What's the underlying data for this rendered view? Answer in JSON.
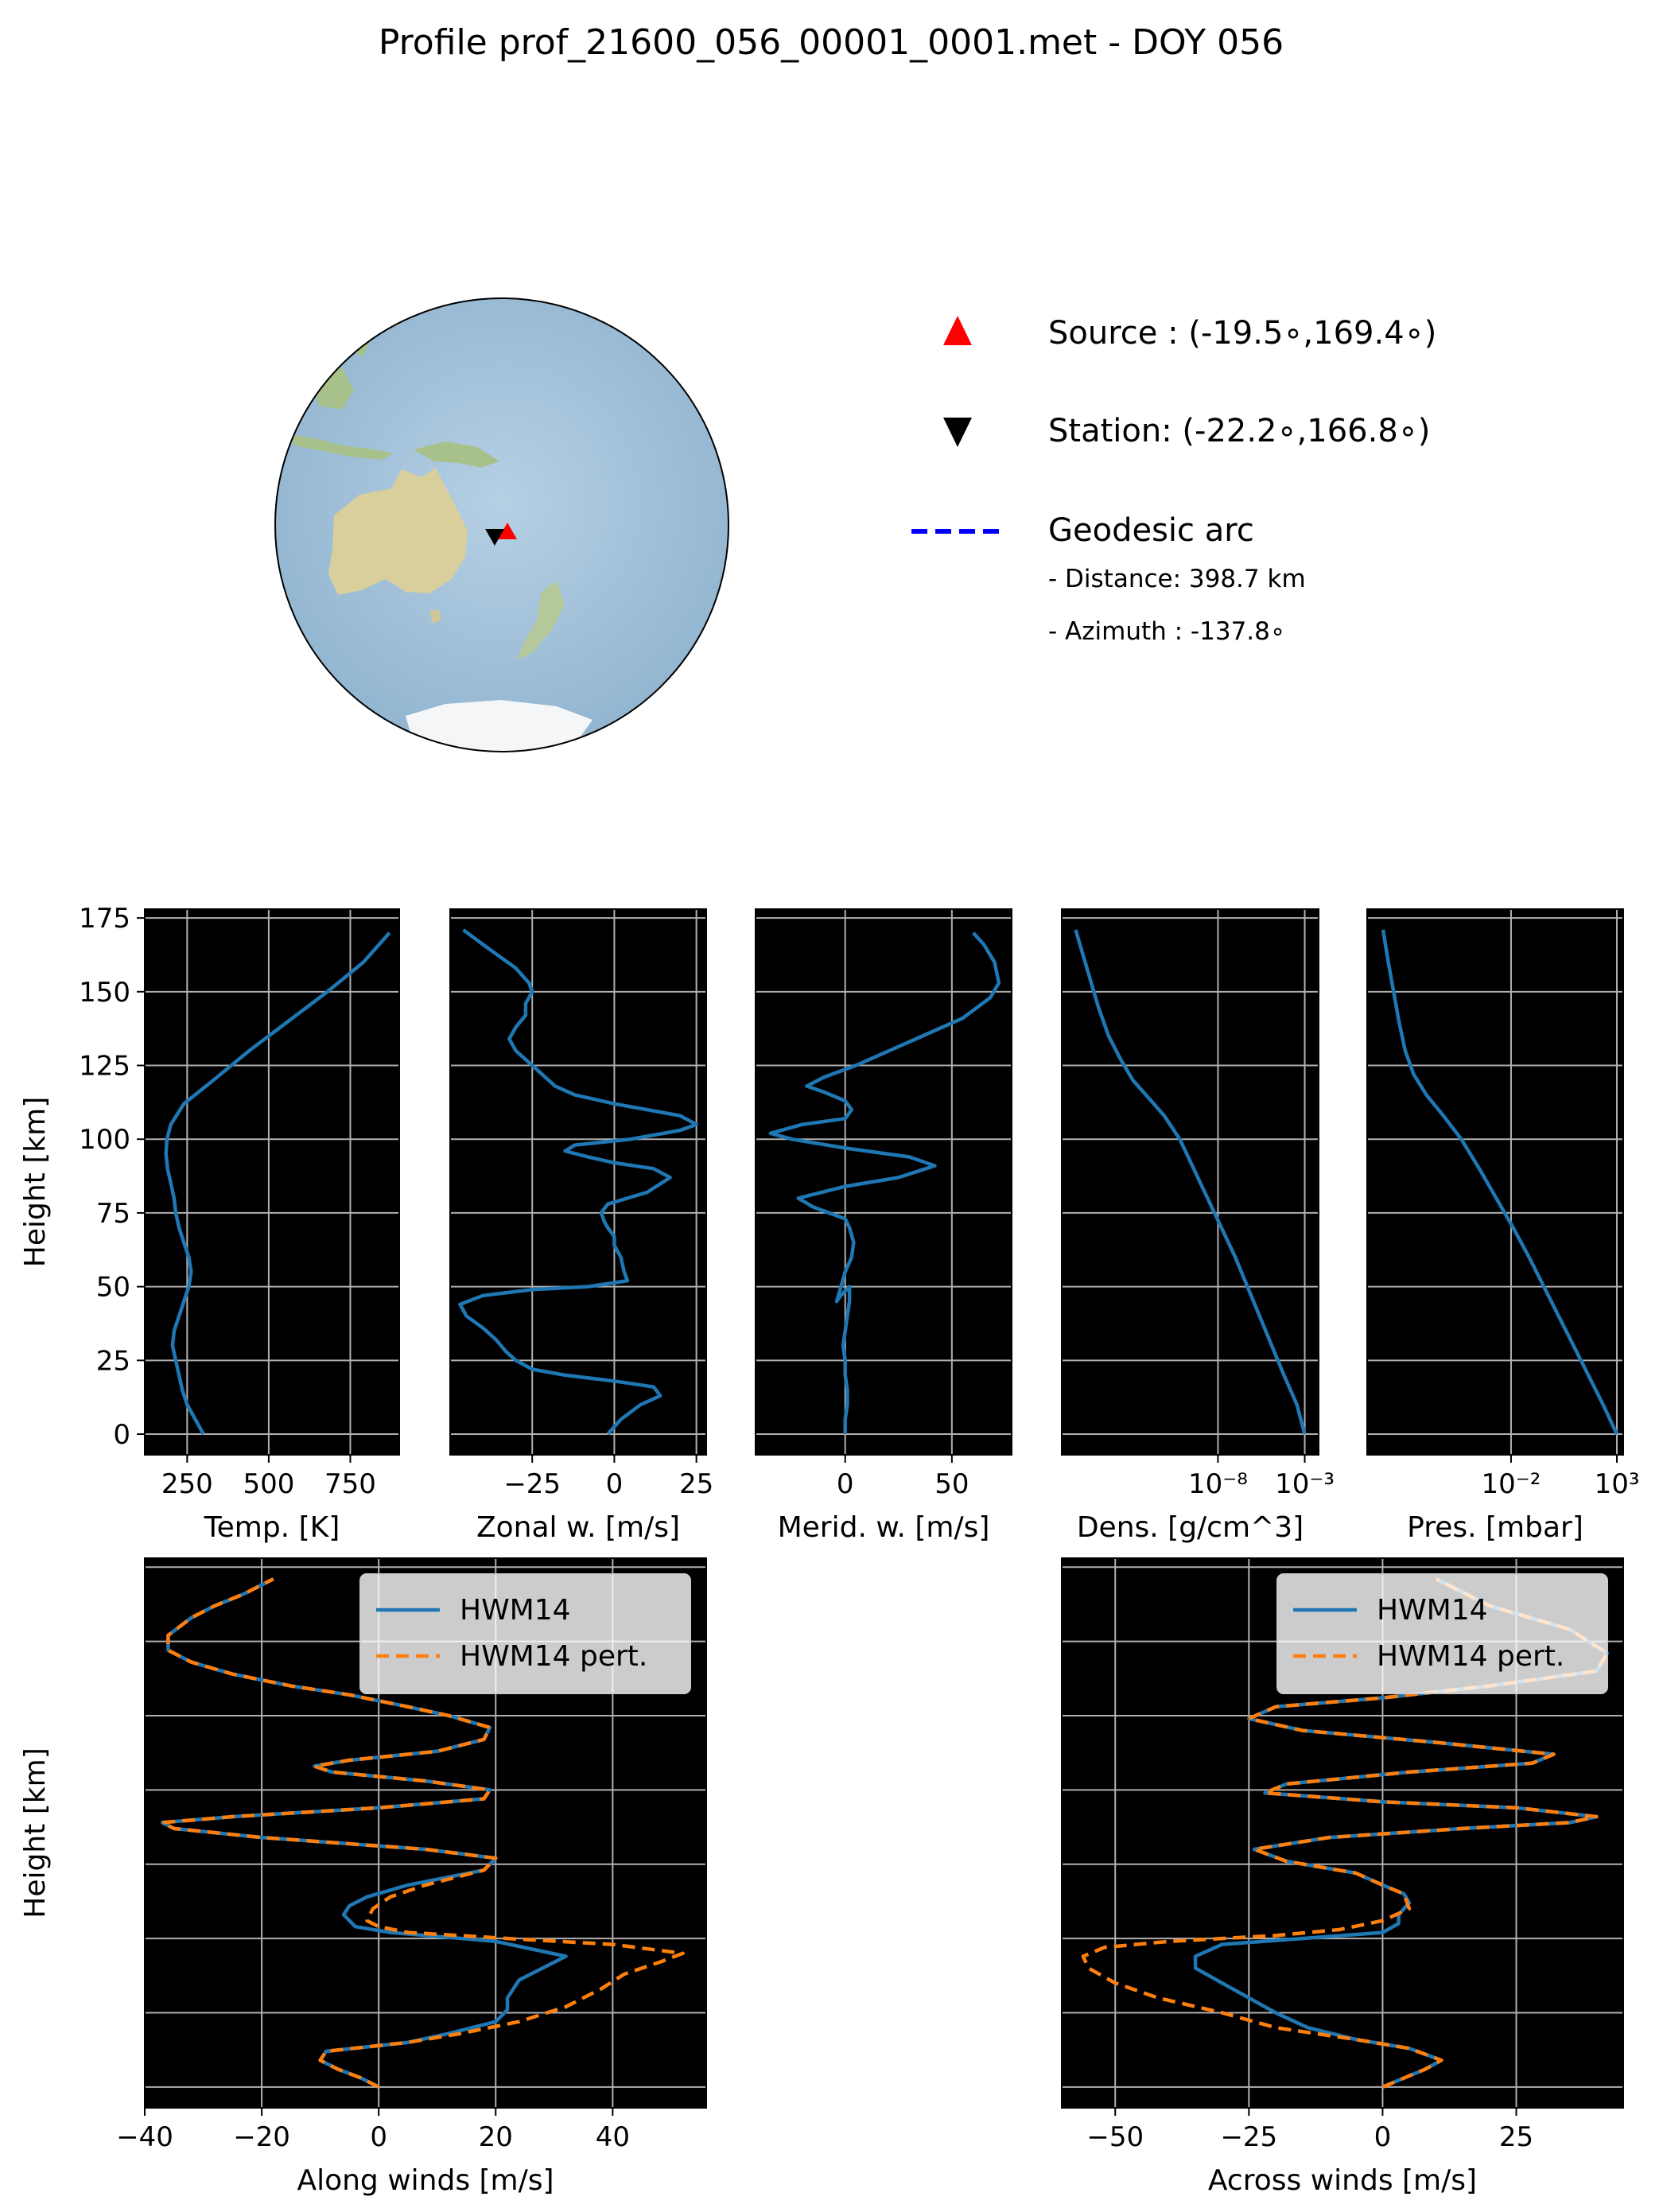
{
  "figure": {
    "title": "Profile prof_21600_056_00001_0001.met - DOY 056"
  },
  "map_panel": {
    "legend": {
      "source_label": "Source : (-19.5$^\\circ$,169.4$^\\circ$)",
      "source_text": "Source : (-19.5∘,169.4∘)",
      "station_text": "Station: (-22.2∘,166.8∘)",
      "arc_text": "Geodesic arc",
      "distance_text": "-  Distance: 398.7 km",
      "azimuth_text": "-  Azimuth : -137.8∘"
    },
    "source": {
      "lat": -19.5,
      "lon": 169.4,
      "color": "#ff0000",
      "marker": "triangle-up"
    },
    "station": {
      "lat": -22.2,
      "lon": 166.8,
      "color": "#000000",
      "marker": "triangle-down"
    },
    "arc_color": "#0000ff",
    "ocean_color": "#a9c6dd",
    "land_color": "#d9d0a0"
  },
  "colors": {
    "line": "#1f77b4",
    "pert": "#ff7f0e",
    "axes_bg": "#000000",
    "grid": "#b0b0b0"
  },
  "chart_data": [
    {
      "id": "temp",
      "type": "line",
      "xlabel": "Temp. [K]",
      "ylabel": "Height [km]",
      "xscale": "linear",
      "xlim": [
        120,
        900
      ],
      "ylim": [
        -7,
        178
      ],
      "xticks": [
        250,
        500,
        750
      ],
      "xticklabels": [
        "250",
        "500",
        "750"
      ],
      "yticks": [
        0,
        25,
        50,
        75,
        100,
        125,
        150,
        175
      ],
      "yticklabels": [
        "0",
        "25",
        "50",
        "75",
        "100",
        "125",
        "150",
        "175"
      ],
      "series": [
        {
          "name": "",
          "x": [
            300,
            275,
            250,
            235,
            225,
            215,
            205,
            210,
            225,
            240,
            255,
            262,
            255,
            240,
            225,
            215,
            210,
            200,
            190,
            185,
            188,
            200,
            240,
            330,
            440,
            560,
            680,
            790,
            870
          ],
          "y": [
            0,
            5,
            10,
            15,
            20,
            25,
            30,
            35,
            40,
            45,
            50,
            55,
            60,
            65,
            70,
            75,
            80,
            85,
            90,
            95,
            100,
            105,
            112,
            120,
            130,
            140,
            150,
            160,
            170
          ]
        }
      ]
    },
    {
      "id": "zonal",
      "type": "line",
      "xlabel": "Zonal w. [m/s]",
      "ylabel": "",
      "xscale": "linear",
      "xlim": [
        -50,
        28
      ],
      "ylim": [
        -7,
        178
      ],
      "xticks": [
        -25,
        0,
        25
      ],
      "xticklabels": [
        "−25",
        "0",
        "25"
      ],
      "yticks": [
        0,
        25,
        50,
        75,
        100,
        125,
        150,
        175
      ],
      "series": [
        {
          "name": "",
          "x": [
            -2,
            2,
            8,
            14,
            12,
            0,
            -15,
            -25,
            -30,
            -33,
            -36,
            -40,
            -45,
            -47,
            -40,
            -25,
            -8,
            4,
            3,
            2,
            0,
            0,
            -2,
            -3,
            -4,
            -2,
            10,
            17,
            12,
            0,
            -8,
            -15,
            -12,
            5,
            20,
            25,
            20,
            0,
            -12,
            -18,
            -22,
            -26,
            -30,
            -32,
            -30,
            -27,
            -27,
            -25,
            -26,
            -30,
            -35,
            -40,
            -46
          ],
          "y": [
            0,
            5,
            10,
            13,
            16,
            18,
            20,
            22,
            25,
            28,
            32,
            36,
            40,
            44,
            47,
            49,
            50,
            52,
            55,
            60,
            64,
            67,
            70,
            72,
            75,
            78,
            82,
            87,
            90,
            92,
            94,
            96,
            98,
            100,
            103,
            105,
            108,
            112,
            115,
            118,
            122,
            126,
            130,
            134,
            138,
            142,
            146,
            150,
            153,
            158,
            162,
            166,
            171
          ]
        }
      ]
    },
    {
      "id": "merid",
      "type": "line",
      "xlabel": "Merid. w. [m/s]",
      "ylabel": "",
      "xscale": "linear",
      "xlim": [
        -42,
        78
      ],
      "ylim": [
        -7,
        178
      ],
      "xticks": [
        0,
        50
      ],
      "xticklabels": [
        "0",
        "50"
      ],
      "yticks": [
        0,
        25,
        50,
        75,
        100,
        125,
        150,
        175
      ],
      "series": [
        {
          "name": "",
          "x": [
            0,
            0,
            1,
            1,
            0,
            0,
            -1,
            0,
            1,
            2,
            2,
            -2,
            -4,
            0,
            3,
            4,
            2,
            0,
            -15,
            -22,
            0,
            25,
            42,
            30,
            0,
            -25,
            -35,
            -20,
            0,
            3,
            0,
            -10,
            -18,
            -10,
            5,
            30,
            55,
            68,
            72,
            70,
            65,
            60
          ],
          "y": [
            0,
            5,
            10,
            15,
            20,
            25,
            30,
            35,
            40,
            45,
            50,
            47,
            45,
            55,
            60,
            65,
            70,
            73,
            77,
            80,
            84,
            87,
            91,
            94,
            97,
            100,
            102,
            105,
            107,
            110,
            113,
            116,
            118,
            121,
            125,
            133,
            141,
            148,
            153,
            160,
            166,
            170
          ]
        }
      ]
    },
    {
      "id": "dens",
      "type": "line",
      "xlabel": "Dens. [g/cm^3]",
      "ylabel": "",
      "xscale": "log",
      "xlim_log10": [
        -17,
        -2.2
      ],
      "ylim": [
        -7,
        178
      ],
      "xticks_log10": [
        -8,
        -3
      ],
      "xticklabels": [
        "10⁻⁸",
        "10⁻³"
      ],
      "yticks": [
        0,
        25,
        50,
        75,
        100,
        125,
        150,
        175
      ],
      "series": [
        {
          "name": "",
          "log10_x": [
            -3.0,
            -3.45,
            -4.2,
            -4.9,
            -5.6,
            -6.3,
            -7.0,
            -7.8,
            -8.6,
            -9.4,
            -10.2,
            -11.1,
            -12.0,
            -12.9,
            -13.6,
            -14.3,
            -14.9,
            -15.4,
            -15.9,
            -16.2
          ],
          "y": [
            0,
            10,
            20,
            30,
            40,
            50,
            60,
            70,
            80,
            90,
            100,
            108,
            114,
            120,
            127,
            135,
            145,
            155,
            165,
            171
          ]
        }
      ]
    },
    {
      "id": "pres",
      "type": "line",
      "xlabel": "Pres. [mbar]",
      "ylabel": "",
      "xscale": "log",
      "xlim_log10": [
        -8.8,
        3.3
      ],
      "ylim": [
        -7,
        178
      ],
      "xticks_log10": [
        -2,
        3
      ],
      "xticklabels": [
        "10⁻²",
        "10³"
      ],
      "yticks": [
        0,
        25,
        50,
        75,
        100,
        125,
        150,
        175
      ],
      "series": [
        {
          "name": "",
          "log10_x": [
            3.0,
            2.35,
            1.65,
            0.95,
            0.25,
            -0.45,
            -1.15,
            -1.9,
            -2.7,
            -3.5,
            -4.35,
            -5.2,
            -6.0,
            -6.6,
            -7.0,
            -7.3,
            -7.55,
            -7.8,
            -8.05
          ],
          "y": [
            0,
            10,
            20,
            30,
            40,
            50,
            60,
            70,
            80,
            90,
            100,
            108,
            115,
            122,
            130,
            140,
            150,
            160,
            171
          ]
        }
      ]
    },
    {
      "id": "along",
      "type": "line",
      "xlabel": "Along winds [m/s]",
      "ylabel": "Height [km]",
      "xscale": "linear",
      "xlim": [
        -40,
        56
      ],
      "ylim": [
        -7,
        178
      ],
      "xticks": [
        -40,
        -20,
        0,
        20,
        40
      ],
      "xticklabels": [
        "−40",
        "−20",
        "0",
        "20",
        "40"
      ],
      "yticks": [
        0,
        25,
        50,
        75,
        100,
        125,
        150,
        175
      ],
      "legend": {
        "location": "upper right",
        "entries": [
          "HWM14",
          "HWM14 pert."
        ]
      },
      "series": [
        {
          "name": "HWM14",
          "x": [
            0,
            -3,
            -7,
            -10,
            -9,
            5,
            12,
            20,
            22,
            22,
            24,
            32,
            20,
            2,
            -4,
            -5,
            -6,
            -5,
            -2,
            5,
            18,
            20,
            8,
            -20,
            -35,
            -37,
            -25,
            0,
            18,
            19,
            8,
            -8,
            -11,
            -5,
            10,
            18,
            19,
            12,
            5,
            -5,
            -15,
            -25,
            -32,
            -36,
            -36,
            -32,
            -28,
            -23,
            -18
          ],
          "y": [
            0,
            3,
            6,
            9,
            12,
            15,
            18,
            22,
            26,
            30,
            36,
            44,
            49,
            52,
            54,
            56,
            58,
            61,
            64,
            68,
            73,
            77,
            80,
            84,
            87,
            89,
            91,
            94,
            97,
            100,
            103,
            106,
            108,
            110,
            113,
            117,
            121,
            125,
            128,
            132,
            135,
            139,
            143,
            147,
            152,
            158,
            162,
            166,
            171
          ]
        },
        {
          "name": "HWM14 pert.",
          "x": [
            0,
            -3,
            -7,
            -10,
            -9,
            5,
            14,
            24,
            32,
            38,
            42,
            48,
            52,
            40,
            22,
            5,
            0,
            -2,
            -1,
            2,
            8,
            18,
            20,
            8,
            -20,
            -35,
            -37,
            -25,
            0,
            18,
            19,
            8,
            -8,
            -11,
            -5,
            10,
            18,
            19,
            12,
            5,
            -5,
            -15,
            -25,
            -32,
            -36,
            -36,
            -32,
            -28,
            -23,
            -18
          ],
          "y": [
            0,
            3,
            6,
            9,
            12,
            15,
            18,
            22,
            27,
            33,
            38,
            42,
            45,
            48,
            50,
            52,
            54,
            56,
            60,
            64,
            68,
            73,
            77,
            80,
            84,
            87,
            89,
            91,
            94,
            97,
            100,
            103,
            106,
            108,
            110,
            113,
            117,
            121,
            125,
            128,
            132,
            135,
            139,
            143,
            147,
            152,
            158,
            162,
            166,
            171
          ]
        }
      ]
    },
    {
      "id": "across",
      "type": "line",
      "xlabel": "Across winds [m/s]",
      "ylabel": "",
      "xscale": "linear",
      "xlim": [
        -60,
        45
      ],
      "ylim": [
        -7,
        178
      ],
      "xticks": [
        -50,
        -25,
        0,
        25
      ],
      "xticklabels": [
        "−50",
        "−25",
        "0",
        "25"
      ],
      "yticks": [
        0,
        25,
        50,
        75,
        100,
        125,
        150,
        175
      ],
      "legend": {
        "location": "upper right",
        "entries": [
          "HWM14",
          "HWM14 pert."
        ]
      },
      "series": [
        {
          "name": "HWM14",
          "x": [
            0,
            4,
            8,
            11,
            5,
            -5,
            -14,
            -20,
            -25,
            -30,
            -35,
            -35,
            -30,
            -15,
            0,
            3,
            3,
            5,
            4,
            0,
            -5,
            -18,
            -24,
            -10,
            15,
            35,
            40,
            25,
            0,
            -22,
            -18,
            5,
            28,
            32,
            10,
            -15,
            -25,
            -20,
            0,
            20,
            40,
            42,
            35,
            20,
            10
          ],
          "y": [
            0,
            3,
            6,
            9,
            13,
            16,
            20,
            25,
            30,
            35,
            40,
            44,
            48,
            50,
            52,
            55,
            58,
            62,
            65,
            68,
            72,
            76,
            80,
            84,
            87,
            89,
            91,
            94,
            96,
            99,
            102,
            106,
            109,
            112,
            116,
            120,
            124,
            128,
            131,
            135,
            140,
            146,
            154,
            162,
            171
          ]
        },
        {
          "name": "HWM14 pert.",
          "x": [
            0,
            4,
            8,
            11,
            5,
            -5,
            -20,
            -30,
            -42,
            -50,
            -55,
            -56,
            -52,
            -40,
            -20,
            -8,
            0,
            5,
            4,
            0,
            -5,
            -18,
            -24,
            -10,
            15,
            35,
            40,
            25,
            0,
            -22,
            -18,
            5,
            28,
            32,
            10,
            -15,
            -25,
            -20,
            0,
            20,
            40,
            42,
            35,
            20,
            10
          ],
          "y": [
            0,
            3,
            6,
            9,
            13,
            16,
            20,
            25,
            30,
            35,
            40,
            44,
            47,
            49,
            51,
            53,
            56,
            60,
            65,
            68,
            72,
            76,
            80,
            84,
            87,
            89,
            91,
            94,
            96,
            99,
            102,
            106,
            109,
            112,
            116,
            120,
            124,
            128,
            131,
            135,
            140,
            146,
            154,
            162,
            171
          ]
        }
      ]
    }
  ]
}
